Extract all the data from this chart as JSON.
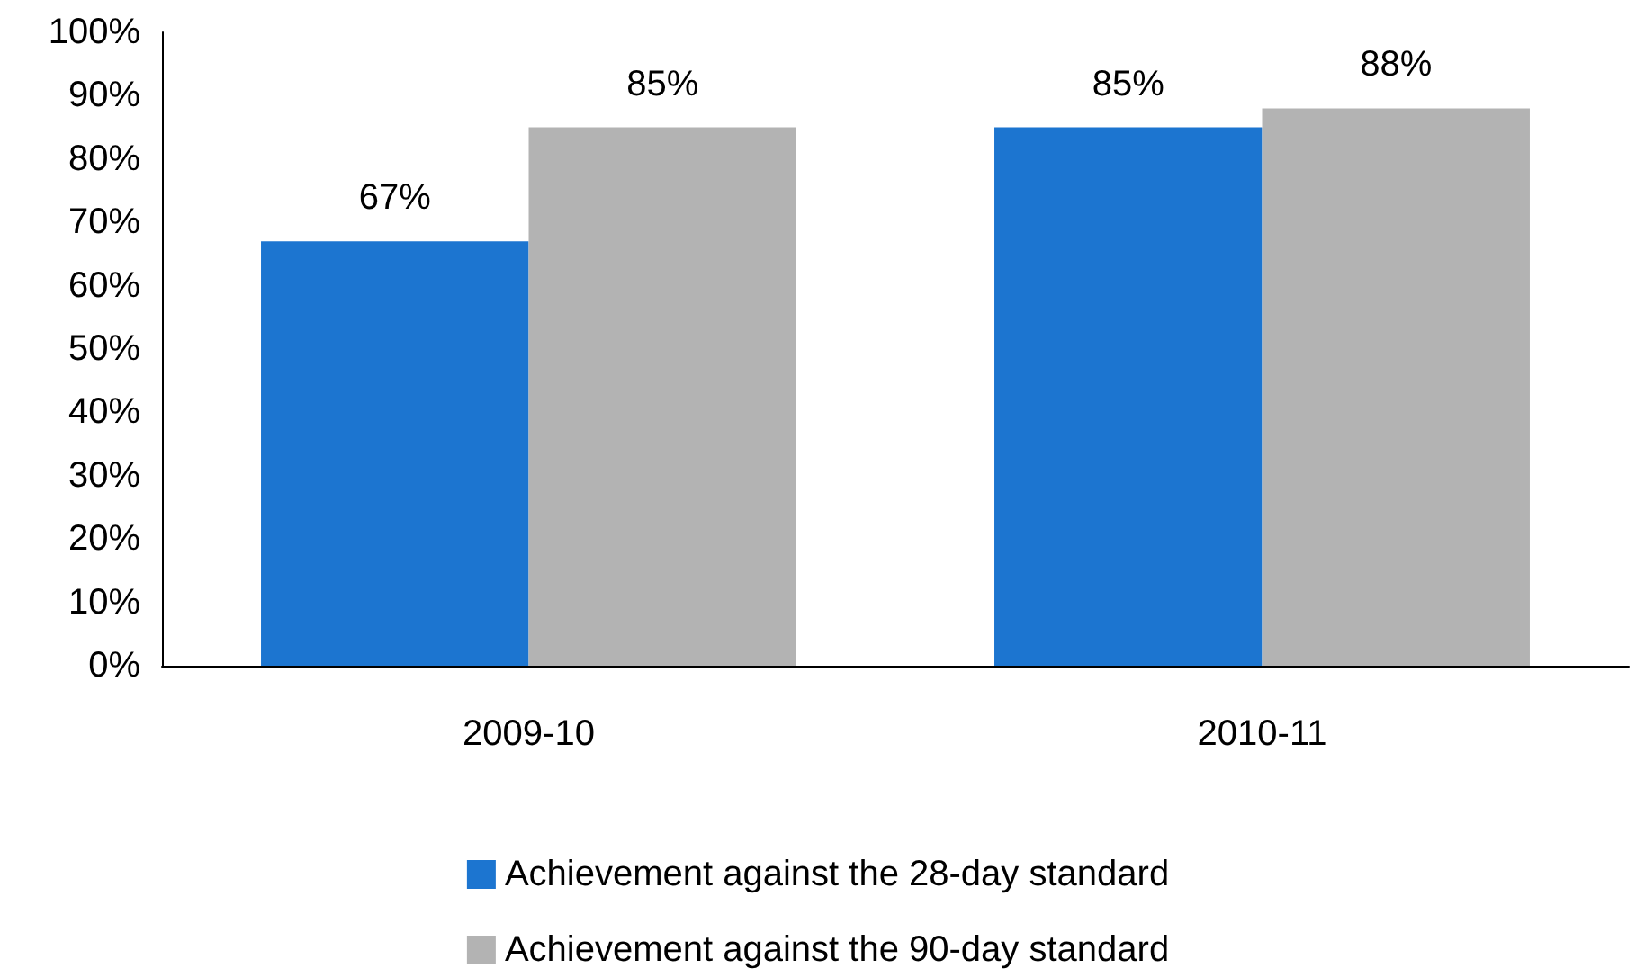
{
  "chart_data": {
    "type": "bar",
    "categories": [
      "2009-10",
      "2010-11"
    ],
    "series": [
      {
        "name": "Achievement against the 28-day standard",
        "color": "#1c75d0",
        "values": [
          67,
          85
        ],
        "value_labels": [
          "67%",
          "85%"
        ]
      },
      {
        "name": "Achievement against the 90-day standard",
        "color": "#b3b3b3",
        "values": [
          85,
          88
        ],
        "value_labels": [
          "85%",
          "88%"
        ]
      }
    ],
    "ylim": [
      0,
      100
    ],
    "yticks": [
      {
        "value": 0,
        "label": "0%"
      },
      {
        "value": 10,
        "label": "10%"
      },
      {
        "value": 20,
        "label": "20%"
      },
      {
        "value": 30,
        "label": "30%"
      },
      {
        "value": 40,
        "label": "40%"
      },
      {
        "value": 50,
        "label": "50%"
      },
      {
        "value": 60,
        "label": "60%"
      },
      {
        "value": 70,
        "label": "70%"
      },
      {
        "value": 80,
        "label": "80%"
      },
      {
        "value": 90,
        "label": "90%"
      },
      {
        "value": 100,
        "label": "100%"
      }
    ],
    "grid": false,
    "legend": "bottom"
  }
}
